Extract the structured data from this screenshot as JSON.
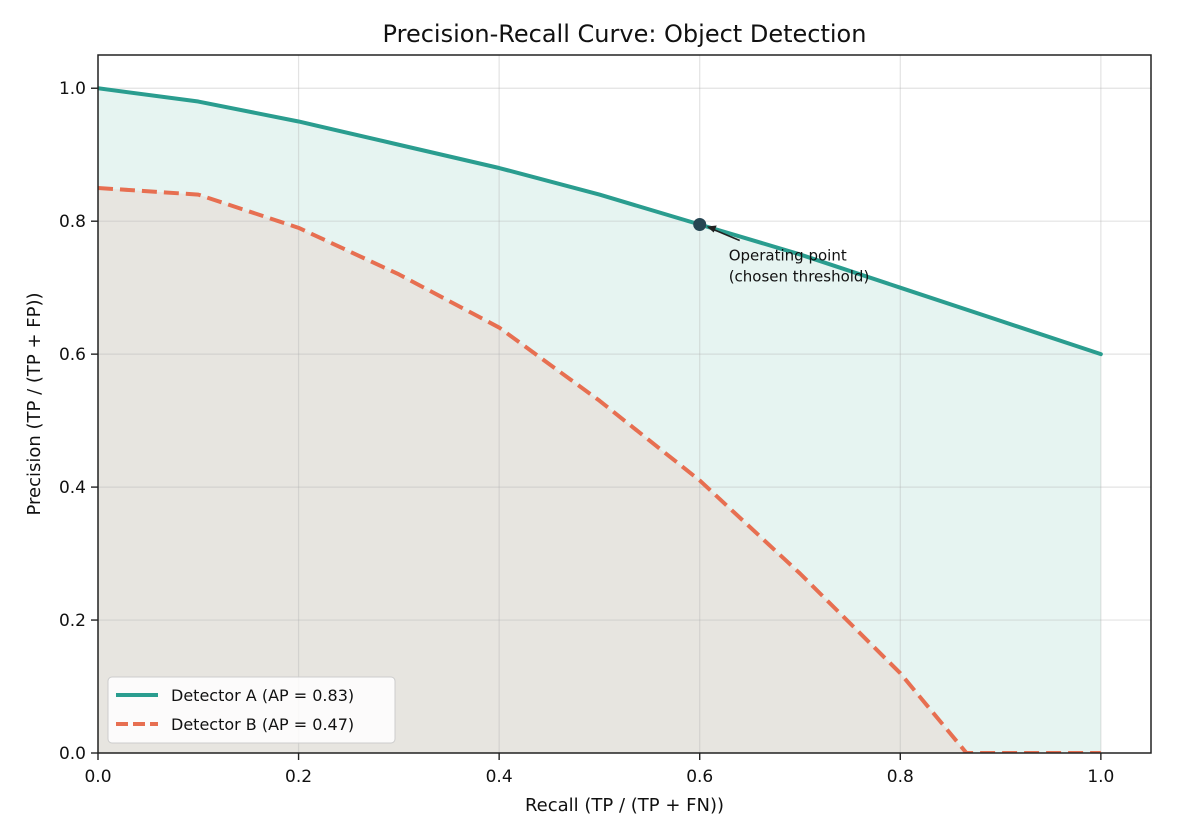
{
  "chart_data": {
    "type": "line",
    "title": "Precision-Recall Curve: Object Detection",
    "xlabel": "Recall (TP / (TP + FN))",
    "ylabel": "Precision (TP / (TP + FP))",
    "xlim": [
      0.0,
      1.05
    ],
    "ylim": [
      0.0,
      1.05
    ],
    "xticks": [
      "0.0",
      "0.2",
      "0.4",
      "0.6",
      "0.8",
      "1.0"
    ],
    "yticks": [
      "0.0",
      "0.2",
      "0.4",
      "0.6",
      "0.8",
      "1.0"
    ],
    "grid": true,
    "legend_position": "lower-left",
    "series": [
      {
        "name": "Detector A (AP = 0.83)",
        "style": "solid",
        "color": "#2a9d8f",
        "fill": "#e6f4f1",
        "x": [
          0.0,
          0.1,
          0.2,
          0.3,
          0.4,
          0.5,
          0.6,
          0.7,
          0.8,
          0.9,
          1.0
        ],
        "y": [
          1.0,
          0.98,
          0.95,
          0.915,
          0.88,
          0.84,
          0.795,
          0.75,
          0.7,
          0.65,
          0.6
        ]
      },
      {
        "name": "Detector B (AP = 0.47)",
        "style": "dashed",
        "color": "#e76f51",
        "fill": "#e7e5e0",
        "x": [
          0.0,
          0.1,
          0.2,
          0.3,
          0.4,
          0.5,
          0.6,
          0.7,
          0.8,
          0.866,
          0.9,
          1.0
        ],
        "y": [
          0.85,
          0.84,
          0.79,
          0.72,
          0.64,
          0.53,
          0.41,
          0.27,
          0.12,
          0.0,
          0.0,
          0.0
        ]
      }
    ],
    "annotations": [
      {
        "text_lines": [
          "Operating point",
          "(chosen threshold)"
        ],
        "x": 0.6,
        "y": 0.795,
        "marker_color": "#264653"
      }
    ]
  }
}
